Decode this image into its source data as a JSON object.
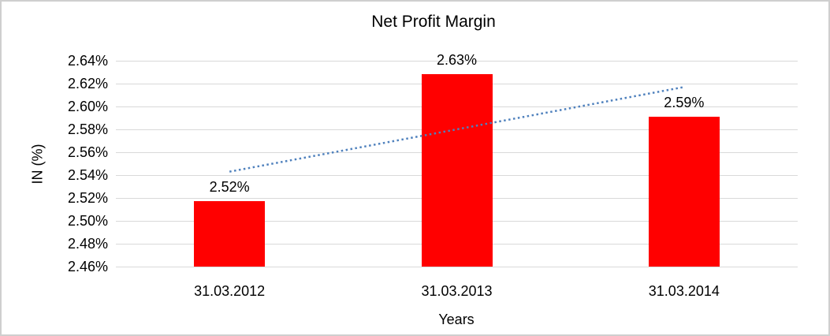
{
  "chart_data": {
    "type": "bar",
    "title": "Net Profit Margin",
    "xlabel": "Years",
    "ylabel": "IN (%)",
    "categories": [
      "31.03.2012",
      "31.03.2013",
      "31.03.2014"
    ],
    "values": [
      2.517,
      2.628,
      2.591
    ],
    "data_labels": [
      "2.52%",
      "2.63%",
      "2.59%"
    ],
    "ylim": [
      2.46,
      2.64
    ],
    "ytick_step": 0.02,
    "ytick_labels": [
      "2.64%",
      "2.62%",
      "2.60%",
      "2.58%",
      "2.56%",
      "2.54%",
      "2.52%",
      "2.50%",
      "2.48%",
      "2.46%"
    ],
    "bar_color": "#FF0000",
    "gridline_color": "#d9d9d9",
    "grid": "on",
    "legend": "none",
    "trendline": {
      "type": "linear",
      "style": "dotted",
      "color": "#4F81BD",
      "start_value": 2.543,
      "end_value": 2.617
    }
  }
}
